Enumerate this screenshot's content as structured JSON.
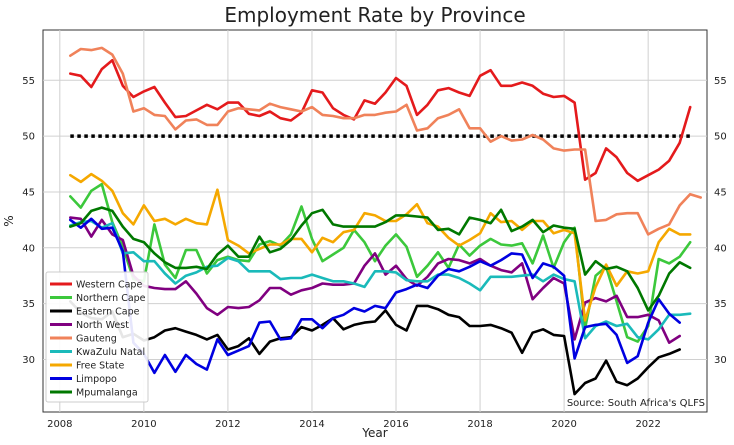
{
  "chart_data": {
    "type": "line",
    "title": "Employment Rate by Province",
    "xlabel": "Year",
    "ylabel": "%",
    "xlim": [
      2007.6,
      2023.4
    ],
    "ylim": [
      25.3,
      59.5
    ],
    "x_ticks": [
      2008,
      2010,
      2012,
      2014,
      2016,
      2018,
      2020,
      2022
    ],
    "y_ticks": [
      30,
      35,
      40,
      45,
      50,
      55
    ],
    "grid": true,
    "legend_position": "bottom-left",
    "source_note": "Source: South Africa's QLFS",
    "reference_line": {
      "y": 50,
      "style": "dotted",
      "color": "#000000"
    },
    "x_start": 2008.25,
    "x_step": 0.25,
    "series": [
      {
        "name": "Western Cape",
        "color": "#e41a1c",
        "values": [
          55.6,
          55.4,
          54.4,
          56.0,
          56.8,
          54.5,
          53.5,
          54.0,
          54.4,
          53.0,
          51.7,
          51.8,
          52.3,
          52.8,
          52.4,
          53.0,
          53.0,
          52.0,
          51.8,
          52.2,
          51.6,
          51.4,
          52.1,
          54.1,
          53.9,
          52.5,
          51.9,
          51.5,
          53.2,
          52.9,
          53.9,
          55.2,
          54.5,
          51.9,
          52.8,
          54.1,
          54.3,
          53.9,
          53.6,
          55.4,
          55.9,
          54.5,
          54.5,
          54.8,
          54.5,
          53.8,
          53.5,
          53.6,
          53.0,
          46.1,
          46.7,
          48.9,
          48.1,
          46.7,
          46.0,
          46.5,
          47.0,
          47.8,
          49.4,
          52.6
        ]
      },
      {
        "name": "Northern Cape",
        "color": "#3cc83c",
        "values": [
          44.6,
          43.6,
          45.1,
          45.7,
          42.3,
          40.1,
          37.2,
          37.0,
          42.1,
          38.5,
          37.3,
          39.8,
          39.8,
          37.7,
          38.9,
          39.2,
          38.9,
          38.8,
          40.3,
          40.6,
          40.2,
          41.2,
          43.7,
          40.8,
          38.8,
          39.4,
          40.0,
          41.6,
          40.5,
          38.8,
          40.2,
          41.2,
          40.1,
          37.4,
          38.4,
          39.6,
          38.2,
          40.3,
          39.3,
          40.2,
          40.8,
          40.3,
          40.2,
          40.4,
          38.6,
          41.1,
          38.2,
          40.5,
          41.8,
          32.8,
          37.5,
          38.3,
          35.2,
          32.0,
          31.6,
          33.0,
          39.0,
          38.6,
          39.2,
          40.5
        ]
      },
      {
        "name": "Eastern Cape",
        "color": "#000000",
        "values": [
          35.2,
          34.2,
          33.7,
          33.6,
          34.3,
          32.0,
          32.3,
          31.7,
          32.0,
          32.6,
          32.8,
          32.5,
          32.2,
          31.8,
          32.2,
          30.9,
          31.2,
          31.9,
          30.5,
          31.6,
          31.9,
          32.0,
          32.9,
          32.6,
          33.1,
          33.7,
          32.7,
          33.1,
          33.3,
          33.4,
          34.4,
          33.1,
          32.6,
          34.8,
          34.8,
          34.5,
          34.0,
          33.8,
          33.0,
          33.0,
          33.1,
          32.8,
          32.4,
          30.6,
          32.4,
          32.7,
          32.2,
          32.1,
          26.9,
          27.9,
          28.3,
          29.9,
          28.0,
          27.7,
          28.3,
          29.3,
          30.2,
          30.5,
          30.9
        ]
      },
      {
        "name": "North West",
        "color": "#800080",
        "values": [
          42.7,
          42.6,
          41.0,
          42.5,
          41.2,
          40.7,
          37.5,
          36.6,
          36.4,
          36.3,
          36.3,
          37.0,
          35.9,
          34.6,
          34.0,
          34.7,
          34.6,
          34.7,
          35.3,
          36.4,
          36.4,
          35.8,
          36.2,
          36.4,
          36.8,
          36.7,
          36.7,
          36.8,
          38.4,
          39.5,
          37.6,
          38.4,
          37.2,
          36.6,
          37.4,
          38.6,
          39.0,
          38.9,
          38.6,
          39.0,
          38.4,
          38.0,
          37.8,
          38.6,
          35.4,
          36.4,
          37.3,
          36.8,
          31.8,
          35.1,
          35.5,
          35.2,
          35.7,
          33.8,
          33.8,
          34.0,
          33.5,
          31.5,
          32.1
        ]
      },
      {
        "name": "Gauteng",
        "color": "#f0825a",
        "values": [
          57.2,
          57.8,
          57.7,
          57.9,
          57.3,
          55.6,
          52.2,
          52.5,
          51.9,
          51.8,
          50.6,
          51.4,
          51.5,
          51.0,
          51.0,
          52.2,
          52.5,
          52.4,
          52.3,
          52.9,
          52.6,
          52.4,
          52.2,
          52.6,
          51.9,
          51.8,
          51.6,
          51.6,
          51.9,
          51.9,
          52.1,
          52.2,
          52.8,
          50.5,
          50.7,
          51.6,
          51.9,
          52.4,
          50.7,
          50.7,
          49.5,
          50.0,
          49.6,
          49.7,
          50.1,
          49.7,
          48.9,
          48.7,
          48.8,
          48.8,
          42.4,
          42.5,
          43.0,
          43.1,
          43.1,
          41.2,
          41.7,
          42.1,
          43.8,
          44.8,
          44.5
        ]
      },
      {
        "name": "KwaZulu Natal",
        "color": "#1ababa",
        "values": [
          42.0,
          42.3,
          42.4,
          41.8,
          42.2,
          39.5,
          39.6,
          38.8,
          38.8,
          37.7,
          36.8,
          37.5,
          37.8,
          38.3,
          38.4,
          39.1,
          38.8,
          37.9,
          37.9,
          37.9,
          37.2,
          37.3,
          37.3,
          37.6,
          37.3,
          37.0,
          37.0,
          36.8,
          36.5,
          37.9,
          37.9,
          37.8,
          37.1,
          37.0,
          37.0,
          37.6,
          37.6,
          37.3,
          36.8,
          36.2,
          37.4,
          37.4,
          37.4,
          37.5,
          37.6,
          37.0,
          37.6,
          37.2,
          37.0,
          31.9,
          33.0,
          33.4,
          33.0,
          33.2,
          32.0,
          31.8,
          32.7,
          34.0,
          34.0,
          34.1
        ]
      },
      {
        "name": "Free State",
        "color": "#f5a800",
        "values": [
          46.5,
          45.9,
          46.6,
          46.0,
          45.1,
          43.1,
          42.1,
          43.8,
          42.4,
          42.6,
          42.1,
          42.6,
          42.2,
          42.1,
          45.2,
          40.7,
          40.2,
          39.5,
          39.9,
          40.3,
          40.3,
          40.8,
          40.8,
          39.6,
          40.9,
          40.5,
          41.4,
          41.6,
          43.1,
          42.9,
          42.4,
          42.4,
          43.0,
          43.9,
          42.2,
          41.9,
          40.9,
          40.2,
          40.7,
          41.3,
          43.1,
          42.3,
          42.4,
          41.6,
          42.4,
          42.4,
          41.3,
          41.6,
          41.3,
          33.5,
          36.5,
          38.5,
          36.6,
          37.9,
          37.7,
          37.9,
          40.5,
          41.7,
          41.2,
          41.2
        ]
      },
      {
        "name": "Limpopo",
        "color": "#0000e0",
        "values": [
          42.5,
          41.8,
          42.6,
          41.7,
          41.8,
          39.7,
          31.5,
          30.5,
          28.8,
          30.4,
          28.9,
          30.4,
          29.6,
          29.1,
          31.8,
          30.4,
          30.8,
          31.2,
          33.3,
          33.4,
          31.8,
          31.9,
          33.6,
          33.6,
          32.8,
          33.7,
          34.0,
          34.6,
          34.3,
          34.8,
          34.6,
          36.0,
          36.3,
          36.7,
          36.4,
          37.5,
          38.1,
          37.9,
          38.3,
          38.8,
          38.4,
          38.9,
          39.5,
          39.4,
          37.3,
          38.6,
          38.3,
          37.5,
          30.1,
          32.9,
          33.1,
          33.2,
          32.2,
          29.7,
          30.3,
          33.3,
          35.4,
          34.1,
          33.3
        ]
      },
      {
        "name": "Mpumalanga",
        "color": "#007800",
        "values": [
          41.9,
          42.2,
          43.3,
          43.6,
          43.3,
          41.9,
          40.8,
          40.5,
          39.5,
          38.7,
          38.2,
          38.2,
          38.3,
          38.1,
          39.4,
          40.2,
          39.2,
          39.2,
          41.0,
          39.6,
          39.9,
          40.7,
          42.0,
          43.1,
          43.4,
          42.1,
          41.9,
          41.9,
          41.9,
          41.9,
          42.3,
          42.9,
          42.9,
          42.8,
          42.7,
          41.6,
          41.7,
          41.2,
          42.7,
          42.5,
          42.2,
          43.4,
          41.5,
          41.9,
          42.5,
          41.4,
          42.0,
          41.8,
          41.7,
          37.6,
          38.8,
          38.1,
          38.3,
          37.9,
          36.4,
          34.4,
          35.7,
          37.7,
          38.7,
          38.2
        ]
      }
    ]
  }
}
